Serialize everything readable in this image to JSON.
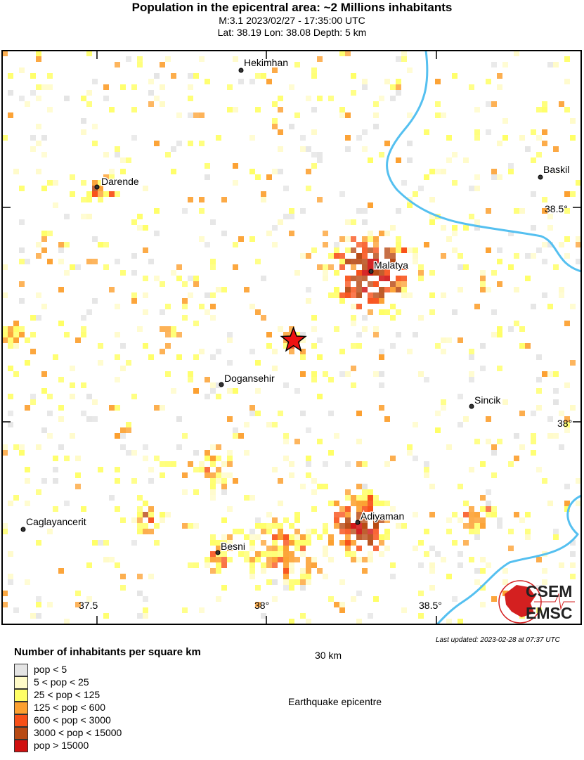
{
  "header": {
    "title": "Population in the epicentral area: ~2 Millions inhabitants",
    "subtitle": "M:3.1 2023/02/27 - 17:35:00 UTC",
    "location": "Lat: 38.19 Lon: 38.08 Depth: 5 km"
  },
  "epicentre": {
    "lat": 38.19,
    "lon": 38.08,
    "label": "Earthquake epicentre",
    "color": "#ee1111"
  },
  "cities": [
    {
      "name": "Hekimhan"
    },
    {
      "name": "Darende"
    },
    {
      "name": "Baskil"
    },
    {
      "name": "Malatya"
    },
    {
      "name": "Dogansehir"
    },
    {
      "name": "Sincik"
    },
    {
      "name": "Caglayancerit"
    },
    {
      "name": "Adiyaman"
    },
    {
      "name": "Besni"
    }
  ],
  "axes": {
    "lon_ticks": [
      "37.5",
      "38°",
      "38.5°"
    ],
    "lat_ticks": [
      "38.5°",
      "38°"
    ]
  },
  "scale": {
    "label": "30 km"
  },
  "legend": {
    "title": "Number of inhabitants per square km",
    "items": [
      {
        "label": "pop < 5",
        "color": "#e4e4e4"
      },
      {
        "label": "5 < pop < 25",
        "color": "#fffbc8"
      },
      {
        "label": "25 < pop < 125",
        "color": "#ffff66"
      },
      {
        "label": "125 < pop < 600",
        "color": "#fca030"
      },
      {
        "label": "600 < pop < 3000",
        "color": "#f85018"
      },
      {
        "label": "3000 < pop < 15000",
        "color": "#b84a14"
      },
      {
        "label": "pop > 15000",
        "color": "#d01010"
      }
    ]
  },
  "river_color": "#55c0f0",
  "logo": {
    "line1": "CSEM",
    "line2": "EMSC"
  },
  "last_updated": "Last updated: 2023-02-28 at 07:37 UTC"
}
